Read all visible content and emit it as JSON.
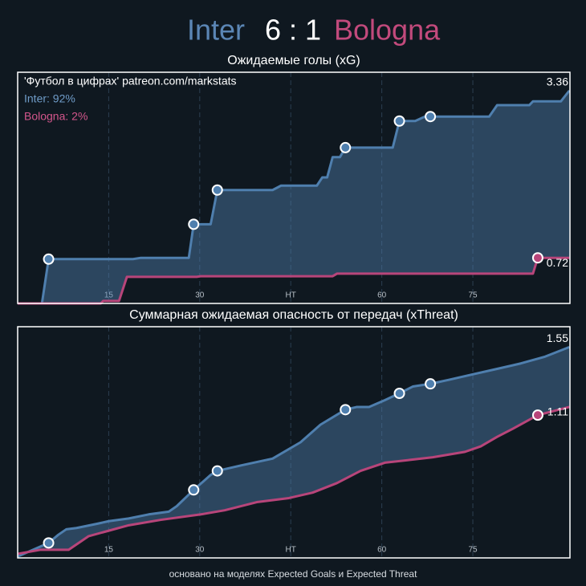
{
  "header": {
    "home": "Inter",
    "score": "6 : 1",
    "away": "Bologna"
  },
  "footer": "основано на моделях Expected Goals и Expected Threat",
  "chart_data": [
    {
      "type": "line",
      "title": "Ожидаемые голы (xG)",
      "annotations": [
        "'Футбол в цифрах' patreon.com/markstats",
        "Inter: 92%",
        "Bologna: 2%"
      ],
      "xlim": [
        0,
        91
      ],
      "xticks": [
        15,
        30,
        {
          "value": 45,
          "label": "HT"
        },
        60,
        75
      ],
      "ylim": [
        0,
        3.65
      ],
      "grid": true,
      "fill_between": true,
      "series": [
        {
          "name": "Inter",
          "color": "#4f7fae",
          "x": [
            0,
            4,
            5.1,
            19,
            20.3,
            28.2,
            29,
            31.8,
            32.9,
            42,
            43.4,
            49.3,
            50.2,
            51,
            51.9,
            53.1,
            54,
            61.8,
            62.9,
            65.5,
            67.1,
            68,
            77.7,
            79,
            84.3,
            84.9,
            89.5,
            90.9
          ],
          "values": [
            0,
            0,
            0.7,
            0.7,
            0.72,
            0.72,
            1.25,
            1.25,
            1.79,
            1.79,
            1.86,
            1.86,
            1.99,
            1.99,
            2.31,
            2.31,
            2.46,
            2.46,
            2.88,
            2.88,
            2.95,
            2.95,
            2.95,
            3.13,
            3.13,
            3.19,
            3.19,
            3.36
          ]
        },
        {
          "name": "Bologna",
          "color": "#b8457a",
          "x": [
            0,
            13.7,
            14.1,
            16.7,
            18,
            29.5,
            30.2,
            51.9,
            52.6,
            84.9,
            85.7,
            90.9
          ],
          "values": [
            0,
            0,
            0.04,
            0.04,
            0.42,
            0.42,
            0.43,
            0.43,
            0.47,
            0.47,
            0.72,
            0.72
          ]
        }
      ],
      "goals": [
        {
          "color": "#4f7fae",
          "x": [
            5.1,
            29,
            32.9,
            54,
            62.9,
            68
          ],
          "values": [
            0.7,
            1.25,
            1.79,
            2.46,
            2.88,
            2.95
          ]
        },
        {
          "color": "#b8457a",
          "x": [
            85.7
          ],
          "values": [
            0.72
          ]
        }
      ]
    },
    {
      "type": "line",
      "title": "Суммарная ожидаемая опасность от передач (xThreat)",
      "xlim": [
        0,
        91
      ],
      "xticks": [
        15,
        30,
        {
          "value": 45,
          "label": "HT"
        },
        60,
        75
      ],
      "ylim": [
        0,
        1.7
      ],
      "grid": true,
      "fill_between": true,
      "series": [
        {
          "name": "Inter",
          "color": "#4f7fae",
          "x": [
            0,
            5.1,
            6.7,
            8,
            9.7,
            13,
            15,
            18.3,
            21.6,
            24.9,
            26.2,
            29,
            31.8,
            32.9,
            36.8,
            42,
            46.6,
            49.9,
            54,
            55.9,
            57.9,
            60.5,
            62.9,
            65.1,
            68,
            71.1,
            75,
            79,
            82.9,
            86.9,
            90.9
          ],
          "values": [
            0.01,
            0.11,
            0.17,
            0.21,
            0.22,
            0.25,
            0.27,
            0.29,
            0.32,
            0.34,
            0.38,
            0.5,
            0.61,
            0.64,
            0.68,
            0.73,
            0.85,
            0.98,
            1.09,
            1.11,
            1.11,
            1.16,
            1.21,
            1.26,
            1.28,
            1.31,
            1.35,
            1.39,
            1.43,
            1.48,
            1.55
          ]
        },
        {
          "name": "Bologna",
          "color": "#b8457a",
          "x": [
            0,
            3.8,
            8.4,
            11.7,
            15,
            18.3,
            23.6,
            30.2,
            34.1,
            39.4,
            44.7,
            48.6,
            52.6,
            56.5,
            60.5,
            64.5,
            68.4,
            73.7,
            76.3,
            79,
            81.6,
            85.7,
            90.9
          ],
          "values": [
            0.03,
            0.06,
            0.06,
            0.16,
            0.2,
            0.24,
            0.28,
            0.32,
            0.35,
            0.41,
            0.44,
            0.48,
            0.55,
            0.64,
            0.7,
            0.72,
            0.74,
            0.78,
            0.82,
            0.89,
            0.95,
            1.05,
            1.11
          ]
        }
      ],
      "goals": [
        {
          "color": "#4f7fae",
          "x": [
            5.1,
            29,
            32.9,
            54,
            62.9,
            68
          ],
          "values": [
            0.11,
            0.5,
            0.64,
            1.09,
            1.21,
            1.28
          ]
        },
        {
          "color": "#b8457a",
          "x": [
            85.7
          ],
          "values": [
            1.05
          ]
        }
      ]
    }
  ]
}
